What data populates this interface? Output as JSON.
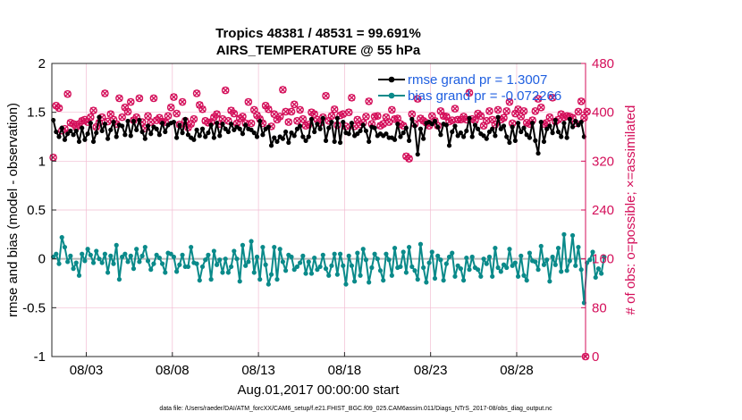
{
  "chart_data": {
    "type": "line",
    "title_line1": "Tropics 48381 / 48531 = 99.691%",
    "title_line2": "AIRS_TEMPERATURE @ 55 hPa",
    "xlabel": "Aug.01,2017 00:00:00 start",
    "ylabel_left": "rmse and bias (model - observation)",
    "ylabel_right": "# of obs: o=possible; ×=assimilated",
    "ylim_left": [
      -1,
      2
    ],
    "ylim_right": [
      0,
      480
    ],
    "yticks_left": [
      "-1",
      "-0.5",
      "0",
      "0.5",
      "1",
      "1.5",
      "2"
    ],
    "yticks_right": [
      "0",
      "80",
      "160",
      "240",
      "320",
      "400",
      "480"
    ],
    "xrange_days": [
      1.0,
      32.0
    ],
    "xticks": [
      {
        "day": 3,
        "label": "08/03"
      },
      {
        "day": 8,
        "label": "08/08"
      },
      {
        "day": 13,
        "label": "08/13"
      },
      {
        "day": 18,
        "label": "08/18"
      },
      {
        "day": 23,
        "label": "08/23"
      },
      {
        "day": 28,
        "label": "08/28"
      }
    ],
    "legend": [
      {
        "name": "rmse",
        "label": "rmse grand pr = 1.3007",
        "color": "#000000"
      },
      {
        "name": "bias",
        "label": "bias grand pr = -0.072266",
        "color": "#0a8a8a"
      }
    ],
    "zero_line_color": "#b8b8b8",
    "colors": {
      "rmse": "#000000",
      "bias": "#0a8a8a",
      "obs": "#d40f5a"
    },
    "series": [
      {
        "name": "rmse",
        "values": [
          1.42,
          1.3,
          1.25,
          1.34,
          1.22,
          1.28,
          1.31,
          1.27,
          1.31,
          1.2,
          1.34,
          1.22,
          1.28,
          1.39,
          1.2,
          1.29,
          1.45,
          1.31,
          1.38,
          1.23,
          1.32,
          1.4,
          1.25,
          1.37,
          1.36,
          1.27,
          1.41,
          1.26,
          1.41,
          1.32,
          1.42,
          1.3,
          1.23,
          1.36,
          1.28,
          1.35,
          1.33,
          1.27,
          1.39,
          1.3,
          1.37,
          1.39,
          1.4,
          1.24,
          1.37,
          1.29,
          1.43,
          1.27,
          1.24,
          1.22,
          1.32,
          1.26,
          1.33,
          1.25,
          1.29,
          1.37,
          1.24,
          1.39,
          1.26,
          1.38,
          1.33,
          1.3,
          1.38,
          1.32,
          1.35,
          1.33,
          1.28,
          1.37,
          1.33,
          1.32,
          1.29,
          1.25,
          1.41,
          1.27,
          1.33,
          1.35,
          1.16,
          1.24,
          1.2,
          1.25,
          1.23,
          1.3,
          1.19,
          1.29,
          1.26,
          1.33,
          1.36,
          1.25,
          1.21,
          1.25,
          1.43,
          1.3,
          1.38,
          1.33,
          1.44,
          1.21,
          1.34,
          1.4,
          1.2,
          1.44,
          1.19,
          1.4,
          1.29,
          1.28,
          1.39,
          1.26,
          1.28,
          1.31,
          1.37,
          1.31,
          1.2,
          1.35,
          1.34,
          1.26,
          1.28,
          1.26,
          1.28,
          1.24,
          1.24,
          1.22,
          1.38,
          1.25,
          1.29,
          1.34,
          1.21,
          1.43,
          1.36,
          1.07,
          1.33,
          1.23,
          1.39,
          1.4,
          1.38,
          1.41,
          1.35,
          1.27,
          1.38,
          1.37,
          1.16,
          1.3,
          1.36,
          1.26,
          1.29,
          1.25,
          1.31,
          1.44,
          1.25,
          1.37,
          1.33,
          1.28,
          1.26,
          1.23,
          1.3,
          1.33,
          1.26,
          1.45,
          1.33,
          1.36,
          1.25,
          1.19,
          1.35,
          1.21,
          1.39,
          1.3,
          1.34,
          1.27,
          1.24,
          1.39,
          1.21,
          1.08,
          1.4,
          1.2,
          1.33,
          1.36,
          1.29,
          1.42,
          1.3,
          1.25,
          1.39,
          1.24,
          1.43,
          1.35,
          1.41,
          1.37,
          1.4,
          1.25
        ]
      },
      {
        "name": "bias",
        "values": [
          0.02,
          0.05,
          -0.05,
          0.22,
          0.12,
          -0.03,
          0.03,
          -0.1,
          -0.04,
          -0.17,
          0.05,
          -0.02,
          0.1,
          0.04,
          -0.04,
          0.08,
          0.0,
          -0.04,
          0.05,
          -0.14,
          0.03,
          -0.05,
          0.14,
          -0.21,
          0.02,
          0.05,
          -0.03,
          0.03,
          -0.1,
          0.1,
          -0.03,
          0.03,
          0.12,
          -0.02,
          -0.11,
          -0.05,
          0.04,
          0.01,
          -0.05,
          -0.14,
          0.06,
          0.05,
          0.02,
          -0.13,
          -0.06,
          0.04,
          -0.08,
          -0.08,
          0.12,
          -0.04,
          -0.05,
          -0.22,
          -0.08,
          -0.01,
          0.04,
          -0.21,
          0.08,
          -0.06,
          -0.01,
          -0.14,
          0.0,
          -0.14,
          -0.08,
          0.08,
          0.0,
          -0.23,
          0.14,
          -0.07,
          -0.03,
          0.18,
          -0.14,
          0.02,
          -0.21,
          0.12,
          -0.06,
          -0.26,
          -0.16,
          0.12,
          -0.21,
          0.1,
          -0.03,
          -0.12,
          0.04,
          0.02,
          -0.11,
          -0.08,
          -0.04,
          0.03,
          -0.15,
          -0.03,
          -0.15,
          0.01,
          -0.11,
          -0.08,
          0.04,
          -0.1,
          -0.17,
          -0.07,
          0.05,
          -0.16,
          0.05,
          -0.07,
          -0.26,
          0.03,
          -0.07,
          -0.23,
          0.06,
          -0.17,
          0.1,
          -0.01,
          -0.24,
          -0.09,
          0.05,
          0.0,
          -0.12,
          -0.22,
          0.05,
          -0.01,
          -0.17,
          0.11,
          -0.09,
          -0.08,
          0.07,
          -0.14,
          0.12,
          -0.08,
          -0.12,
          -0.21,
          0.15,
          -0.09,
          -0.24,
          -0.04,
          0.07,
          -0.2,
          0.03,
          -0.01,
          -0.22,
          -0.05,
          0.02,
          0.06,
          -0.18,
          -0.07,
          -0.1,
          -0.22,
          0.01,
          -0.11,
          0.02,
          -0.09,
          -0.11,
          -0.18,
          0.0,
          -0.05,
          0.02,
          -0.18,
          0.11,
          -0.09,
          -0.13,
          -0.06,
          -0.09,
          0.1,
          -0.07,
          -0.04,
          -0.18,
          0.03,
          -0.17,
          -0.22,
          0.06,
          -0.02,
          -0.03,
          -0.11,
          0.13,
          -0.06,
          -0.01,
          -0.23,
          0.02,
          -0.06,
          0.11,
          -0.13,
          0.25,
          -0.12,
          -0.02,
          0.24,
          -0.07,
          0.12,
          -0.11,
          -0.45,
          -0.04,
          -0.01,
          0.07,
          -0.19,
          -0.1,
          -0.15,
          0.02
        ]
      },
      {
        "name": "obs",
        "values": [
          326,
          411,
          407,
          370,
          373,
          430,
          383,
          381,
          376,
          381,
          386,
          388,
          384,
          392,
          403,
          376,
          383,
          392,
          431,
          385,
          397,
          388,
          381,
          423,
          392,
          408,
          401,
          417,
          387,
          392,
          423,
          384,
          374,
          394,
          384,
          423,
          387,
          391,
          385,
          384,
          394,
          408,
          425,
          398,
          380,
          417,
          386,
          375,
          381,
          389,
          431,
          412,
          405,
          386,
          383,
          384,
          392,
          397,
          381,
          389,
          436,
          386,
          403,
          398,
          382,
          390,
          393,
          382,
          417,
          382,
          404,
          395,
          389,
          382,
          411,
          405,
          377,
          397,
          388,
          393,
          437,
          401,
          384,
          401,
          413,
          386,
          404,
          389,
          378,
          380,
          400,
          397,
          388,
          383,
          392,
          427,
          386,
          394,
          405,
          379,
          395,
          397,
          377,
          400,
          424,
          377,
          388,
          380,
          383,
          393,
          418,
          381,
          393,
          394,
          378,
          381,
          392,
          384,
          404,
          389,
          390,
          381,
          378,
          328,
          324,
          397,
          381,
          422,
          390,
          386,
          383,
          378,
          394,
          386,
          378,
          402,
          394,
          393,
          385,
          387,
          406,
          388,
          388,
          393,
          388,
          432,
          389,
          387,
          398,
          394,
          378,
          386,
          402,
          388,
          380,
          404,
          388,
          391,
          402,
          417,
          382,
          398,
          405,
          393,
          402,
          383,
          381,
          387,
          402,
          422,
          408,
          381,
          383,
          392,
          424,
          385,
          388,
          397,
          392,
          394,
          393,
          391,
          382,
          401,
          418,
          391,
          401
        ]
      }
    ]
  },
  "footnote": "data file: /Users/raeder/DAI/ATM_forcXX/CAM6_setup/f.e21.FHIST_BGC.f09_025.CAM6assim.011/Diags_NTrS_2017-08/obs_diag_output.nc"
}
